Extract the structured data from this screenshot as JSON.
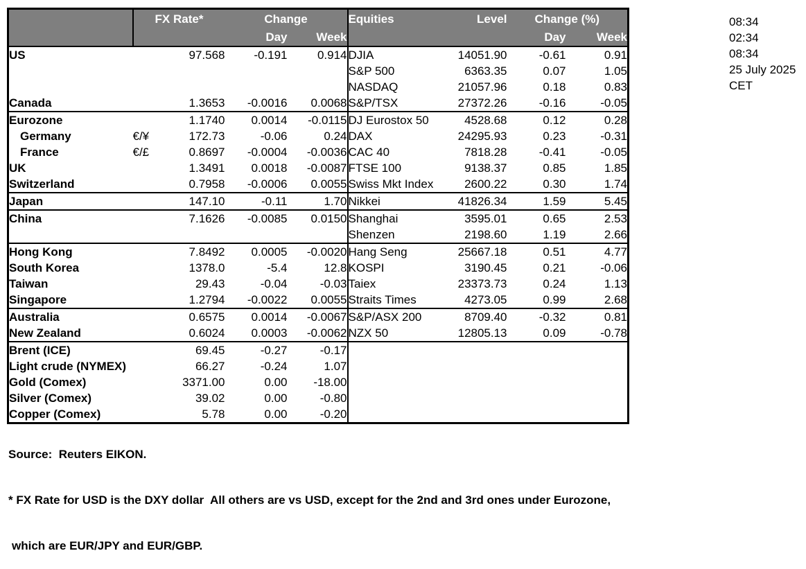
{
  "timestamps": [
    "08:34",
    "02:34",
    "08:34",
    "25 July 2025",
    "CET"
  ],
  "table": {
    "headers": {
      "fx_rate": "FX Rate*",
      "change": "Change",
      "day": "Day",
      "week": "Week",
      "equities": "Equities",
      "level": "Level",
      "change_pct": "Change (%)"
    }
  },
  "rows": [
    {
      "name": "US",
      "pair": "",
      "rate": "97.568",
      "day": "-0.191",
      "week": "0.914",
      "equity": "DJIA",
      "level": "14051.90",
      "eday": "-0.61",
      "eweek": "0.91",
      "indent": false,
      "divider": false
    },
    {
      "name": "",
      "pair": "",
      "rate": "",
      "day": "",
      "week": "",
      "equity": "S&P 500",
      "level": "6363.35",
      "eday": "0.07",
      "eweek": "1.05",
      "indent": false,
      "divider": false
    },
    {
      "name": "",
      "pair": "",
      "rate": "",
      "day": "",
      "week": "",
      "equity": "NASDAQ",
      "level": "21057.96",
      "eday": "0.18",
      "eweek": "0.83",
      "indent": false,
      "divider": false
    },
    {
      "name": "Canada",
      "pair": "",
      "rate": "1.3653",
      "day": "-0.0016",
      "week": "0.0068",
      "equity": "S&P/TSX",
      "level": "27372.26",
      "eday": "-0.16",
      "eweek": "-0.05",
      "indent": false,
      "divider": true
    },
    {
      "name": "Eurozone",
      "pair": "",
      "rate": "1.1740",
      "day": "0.0014",
      "week": "-0.0115",
      "equity": "DJ Eurostox 50",
      "level": "4528.68",
      "eday": "0.12",
      "eweek": "0.28",
      "indent": false,
      "divider": false
    },
    {
      "name": "Germany",
      "pair": "€/¥",
      "rate": "172.73",
      "day": "-0.06",
      "week": "0.24",
      "equity": "DAX",
      "level": "24295.93",
      "eday": "0.23",
      "eweek": "-0.31",
      "indent": true,
      "divider": false
    },
    {
      "name": "France",
      "pair": "€/£",
      "rate": "0.8697",
      "day": "-0.0004",
      "week": "-0.0036",
      "equity": "CAC 40",
      "level": "7818.28",
      "eday": "-0.41",
      "eweek": "-0.05",
      "indent": true,
      "divider": false
    },
    {
      "name": "UK",
      "pair": "",
      "rate": "1.3491",
      "day": "0.0018",
      "week": "-0.0087",
      "equity": "FTSE 100",
      "level": "9138.37",
      "eday": "0.85",
      "eweek": "1.85",
      "indent": false,
      "divider": false
    },
    {
      "name": "Switzerland",
      "pair": "",
      "rate": "0.7958",
      "day": "-0.0006",
      "week": "0.0055",
      "equity": "Swiss Mkt Index",
      "level": "2600.22",
      "eday": "0.30",
      "eweek": "1.74",
      "indent": false,
      "divider": true
    },
    {
      "name": "Japan",
      "pair": "",
      "rate": "147.10",
      "day": "-0.11",
      "week": "1.70",
      "equity": "Nikkei",
      "level": "41826.34",
      "eday": "1.59",
      "eweek": "5.45",
      "indent": false,
      "divider": true
    },
    {
      "name": "China",
      "pair": "",
      "rate": "7.1626",
      "day": "-0.0085",
      "week": "0.0150",
      "equity": "Shanghai",
      "level": "3595.01",
      "eday": "0.65",
      "eweek": "2.53",
      "indent": false,
      "divider": false
    },
    {
      "name": "",
      "pair": "",
      "rate": "",
      "day": "",
      "week": "",
      "equity": "Shenzen",
      "level": "2198.60",
      "eday": "1.19",
      "eweek": "2.66",
      "indent": false,
      "divider": true
    },
    {
      "name": "Hong Kong",
      "pair": "",
      "rate": "7.8492",
      "day": "0.0005",
      "week": "-0.0020",
      "equity": "Hang Seng",
      "level": "25667.18",
      "eday": "0.51",
      "eweek": "4.77",
      "indent": false,
      "divider": false
    },
    {
      "name": "South Korea",
      "pair": "",
      "rate": "1378.0",
      "day": "-5.4",
      "week": "12.8",
      "equity": "KOSPI",
      "level": "3190.45",
      "eday": "0.21",
      "eweek": "-0.06",
      "indent": false,
      "divider": false
    },
    {
      "name": "Taiwan",
      "pair": "",
      "rate": "29.43",
      "day": "-0.04",
      "week": "-0.03",
      "equity": "Taiex",
      "level": "23373.73",
      "eday": "0.24",
      "eweek": "1.13",
      "indent": false,
      "divider": false
    },
    {
      "name": "Singapore",
      "pair": "",
      "rate": "1.2794",
      "day": "-0.0022",
      "week": "0.0055",
      "equity": "Straits Times",
      "level": "4273.05",
      "eday": "0.99",
      "eweek": "2.68",
      "indent": false,
      "divider": true
    },
    {
      "name": "Australia",
      "pair": "",
      "rate": "0.6575",
      "day": "0.0014",
      "week": "-0.0067",
      "equity": "S&P/ASX  200",
      "level": "8709.40",
      "eday": "-0.32",
      "eweek": "0.81",
      "indent": false,
      "divider": false
    },
    {
      "name": "New Zealand",
      "pair": "",
      "rate": "0.6024",
      "day": "0.0003",
      "week": "-0.0062",
      "equity": "NZX 50",
      "level": "12805.13",
      "eday": "0.09",
      "eweek": "-0.78",
      "indent": false,
      "divider": true
    },
    {
      "name": "Brent (ICE)",
      "pair": "",
      "rate": "69.45",
      "day": "-0.27",
      "week": "-0.17",
      "equity": "",
      "level": "",
      "eday": "",
      "eweek": "",
      "indent": false,
      "divider": false
    },
    {
      "name": "Light crude (NYMEX)",
      "pair": "",
      "rate": "66.27",
      "day": "-0.24",
      "week": "1.07",
      "equity": "",
      "level": "",
      "eday": "",
      "eweek": "",
      "indent": false,
      "divider": false
    },
    {
      "name": "Gold (Comex)",
      "pair": "",
      "rate": "3371.00",
      "day": "0.00",
      "week": "-18.00",
      "equity": "",
      "level": "",
      "eday": "",
      "eweek": "",
      "indent": false,
      "divider": false
    },
    {
      "name": "Silver (Comex)",
      "pair": "",
      "rate": "39.02",
      "day": "0.00",
      "week": "-0.80",
      "equity": "",
      "level": "",
      "eday": "",
      "eweek": "",
      "indent": false,
      "divider": false
    },
    {
      "name": "Copper (Comex)",
      "pair": "",
      "rate": "5.78",
      "day": "0.00",
      "week": "-0.20",
      "equity": "",
      "level": "",
      "eday": "",
      "eweek": "",
      "indent": false,
      "divider": false
    }
  ],
  "footnotes": {
    "source": "Source:  Reuters EIKON.",
    "note1": "* FX Rate for USD is the DXY dollar  All others are vs USD, except for the 2nd and 3rd ones under Eurozone,",
    "note2": "which are EUR/JPY and EUR/GBP."
  }
}
